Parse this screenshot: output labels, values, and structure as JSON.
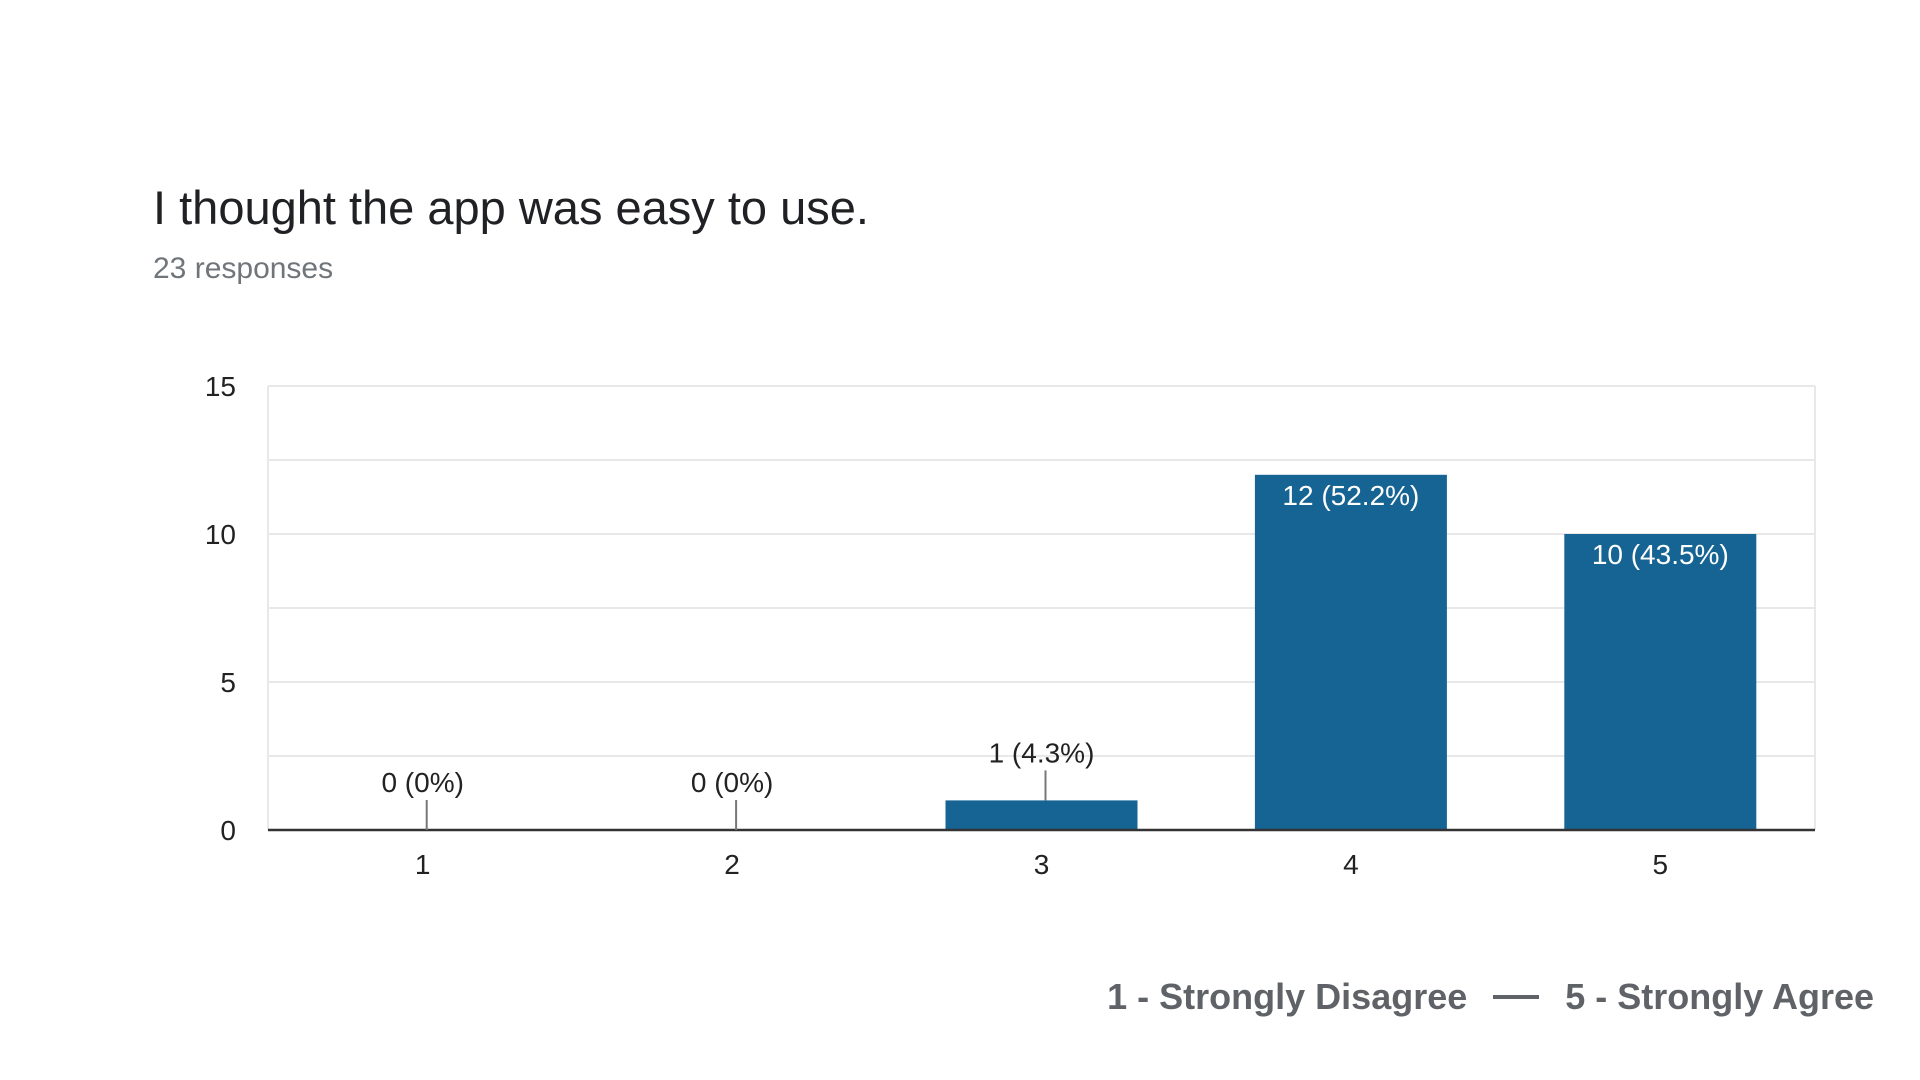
{
  "question": {
    "title": "I thought the app was easy to use.",
    "responses": "23 responses"
  },
  "scale_legend": {
    "low": "1 - Strongly Disagree",
    "high": "5 - Strongly Agree"
  },
  "colors": {
    "bar": "#166494",
    "grid": "#e8e8e8",
    "axis": "#333333",
    "tick_text": "#222222",
    "label_inside": "#ffffff",
    "label_outside": "#222222"
  },
  "chart_data": {
    "type": "bar",
    "categories": [
      "1",
      "2",
      "3",
      "4",
      "5"
    ],
    "values": [
      0,
      0,
      1,
      12,
      10
    ],
    "data_labels": [
      "0 (0%)",
      "0 (0%)",
      "1 (4.3%)",
      "12 (52.2%)",
      "10 (43.5%)"
    ],
    "ylim": [
      0,
      15
    ],
    "yticks": [
      0,
      5,
      10,
      15
    ],
    "ytick_labels": [
      "0",
      "5",
      "10",
      "15"
    ],
    "grid": true,
    "legend": "none"
  }
}
